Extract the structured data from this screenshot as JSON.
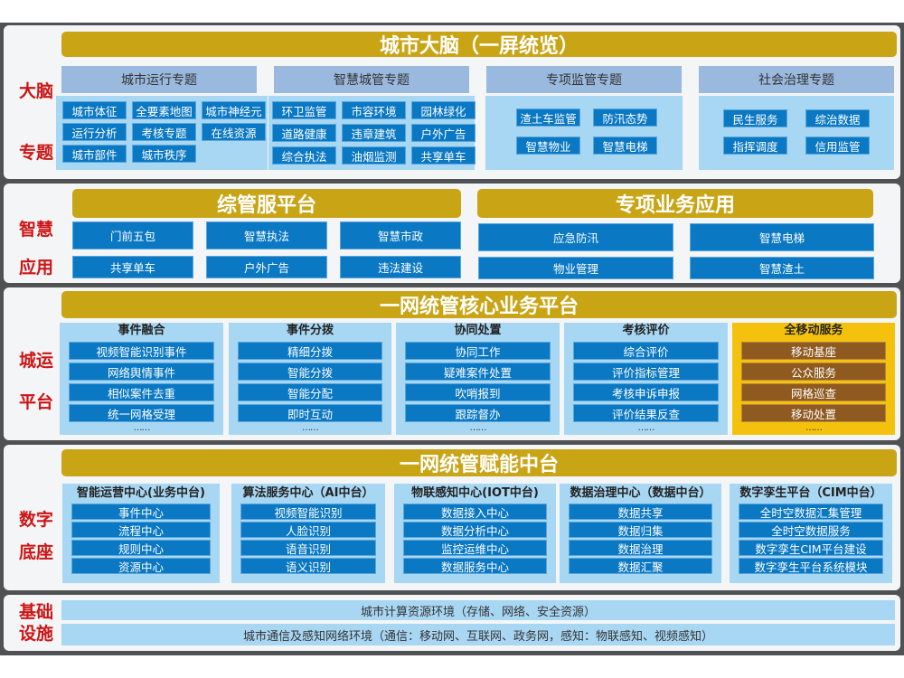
{
  "colors": {
    "gold": "#c9a516",
    "item_blue": "#0a78c3",
    "light_blue": "#a8d7f3",
    "header_blue": "#9ab9df",
    "label_red": "#cc1515",
    "mobile_yellow": "#f4c20d",
    "mobile_brown": "#8e5a1f"
  },
  "brain": {
    "label_top": "大脑",
    "label_bottom": "专题",
    "title": "城市大脑（一屏统览）",
    "groups": [
      {
        "title": "城市运行专题",
        "items": [
          "城市体征",
          "全要素地图",
          "城市神经元",
          "运行分析",
          "考核专题",
          "在线资源",
          "城市部件",
          "城市秩序"
        ]
      },
      {
        "title": "智慧城管专题",
        "items": [
          "环卫监管",
          "市容环境",
          "园林绿化",
          "道路健康",
          "违章建筑",
          "户外广告",
          "综合执法",
          "油烟监测",
          "共享单车"
        ]
      },
      {
        "title": "专项监管专题",
        "items": [
          "渣土车监管",
          "防汛态势",
          "智慧物业",
          "智慧电梯"
        ]
      },
      {
        "title": "社会治理专题",
        "items": [
          "民生服务",
          "综治数据",
          "指挥调度",
          "信用监管"
        ]
      }
    ]
  },
  "apps": {
    "label_top": "智慧",
    "label_bottom": "应用",
    "left": {
      "title": "综管服平台",
      "items": [
        "门前五包",
        "智慧执法",
        "智慧市政",
        "共享单车",
        "户外广告",
        "违法建设"
      ]
    },
    "right": {
      "title": "专项业务应用",
      "items": [
        "应急防汛",
        "智慧电梯",
        "物业管理",
        "智慧渣土"
      ]
    }
  },
  "core": {
    "label_top": "城运",
    "label_bottom": "平台",
    "title": "一网统管核心业务平台",
    "more": "……",
    "columns": [
      {
        "title": "事件融合",
        "items": [
          "视频智能识别事件",
          "网络舆情事件",
          "相似案件去重",
          "统一网格受理"
        ]
      },
      {
        "title": "事件分拨",
        "items": [
          "精细分拨",
          "智能分拨",
          "智能分配",
          "即时互动"
        ]
      },
      {
        "title": "协同处置",
        "items": [
          "协同工作",
          "疑难案件处置",
          "吹哨报到",
          "跟踪督办"
        ]
      },
      {
        "title": "考核评价",
        "items": [
          "综合评价",
          "评价指标管理",
          "考核申诉申报",
          "评价结果反查"
        ]
      },
      {
        "title": "全移动服务",
        "items": [
          "移动基座",
          "公众服务",
          "网格巡查",
          "移动处置"
        ]
      }
    ]
  },
  "base": {
    "label_top": "数字",
    "label_bottom": "底座",
    "title": "一网统管赋能中台",
    "columns": [
      {
        "title": "智能运营中心(业务中台)",
        "items": [
          "事件中心",
          "流程中心",
          "规则中心",
          "资源中心"
        ]
      },
      {
        "title": "算法服务中心（AI中台）",
        "items": [
          "视频智能识别",
          "人脸识别",
          "语音识别",
          "语义识别"
        ]
      },
      {
        "title": "物联感知中心(IOT中台)",
        "items": [
          "数据接入中心",
          "数据分析中心",
          "监控运维中心",
          "数据服务中心"
        ]
      },
      {
        "title": "数据治理中心（数据中台）",
        "items": [
          "数据共享",
          "数据归集",
          "数据治理",
          "数据汇聚"
        ]
      },
      {
        "title": "数字孪生平台（CIM中台）",
        "items": [
          "全时空数据汇集管理",
          "全时空数据服务",
          "数字孪生CIM平台建设",
          "数字孪生平台系统模块"
        ]
      }
    ]
  },
  "infra": {
    "label_top": "基础",
    "label_bottom": "设施",
    "rows": [
      "城市计算资源环境（存储、网络、安全资源）",
      "城市通信及感知网络环境（通信：移动网、互联网、政务网，感知：物联感知、视频感知）"
    ]
  }
}
